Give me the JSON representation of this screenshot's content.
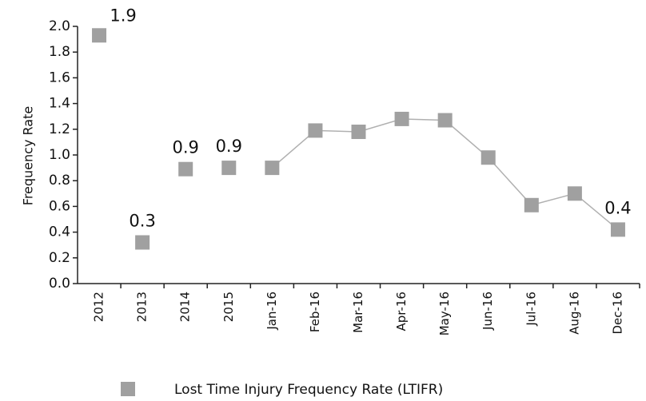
{
  "chart_data": {
    "type": "line",
    "y_label": "Frequency Rate",
    "categories": [
      "2012",
      "2013",
      "2014",
      "2015",
      "Jan-16",
      "Feb-16",
      "Mar-16",
      "Apr-16",
      "May-16",
      "Jun-16",
      "Jul-16",
      "Aug-16",
      "Dec-16"
    ],
    "series": [
      {
        "name": "Lost Time Injury Frequency Rate (LTIFR)",
        "color": "#a0a0a0",
        "values": [
          1.93,
          0.32,
          0.89,
          0.9,
          0.9,
          1.19,
          1.18,
          1.28,
          1.27,
          0.98,
          0.61,
          0.7,
          0.42
        ],
        "value_labels": [
          "1.9",
          "0.3",
          "0.9",
          "0.9",
          null,
          null,
          null,
          null,
          null,
          null,
          null,
          null,
          "0.4"
        ]
      }
    ],
    "line_from": 4,
    "line_color": "#b0b0b0",
    "ylim": [
      0,
      2
    ],
    "yticks": [
      {
        "value": 0,
        "label": "0.0"
      },
      0.2,
      0.4,
      0.6,
      0.8,
      {
        "value": 1,
        "label": "1.0"
      },
      1.2,
      1.4,
      1.6,
      1.8,
      {
        "value": 2,
        "label": "2.0"
      }
    ]
  }
}
